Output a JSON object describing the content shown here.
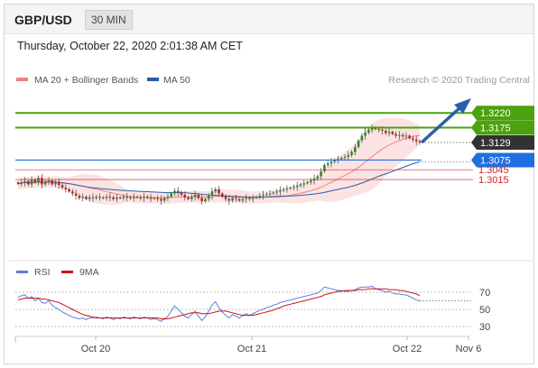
{
  "header": {
    "symbol": "GBP/USD",
    "timeframe": "30 MIN"
  },
  "datetime": "Thursday, October 22, 2020 2:01:38 AM CET",
  "legend": {
    "bollinger": {
      "label": "MA 20 + Bollinger Bands",
      "color": "#f08080"
    },
    "ma50": {
      "label": "MA 50",
      "color": "#2a5fa8"
    }
  },
  "copyright": "Research © 2020 Trading Central",
  "levels": [
    {
      "value": 1.322,
      "label": "1.3220",
      "kind": "resistance",
      "color": "#4ca10f"
    },
    {
      "value": 1.3175,
      "label": "1.3175",
      "kind": "resistance",
      "color": "#4ca10f"
    },
    {
      "value": 1.3129,
      "label": "1.3129",
      "kind": "last-price",
      "color": "#333333"
    },
    {
      "value": 1.3075,
      "label": "1.3075",
      "kind": "pivot",
      "color": "#1f6fe0"
    },
    {
      "value": 1.3045,
      "label": "1.3045",
      "kind": "support",
      "color": "#d02020"
    },
    {
      "value": 1.3015,
      "label": "1.3015",
      "kind": "support",
      "color": "#d02020"
    }
  ],
  "rsi_legend": {
    "rsi": {
      "label": "RSI",
      "color": "#5b7fd8"
    },
    "ma9": {
      "label": "9MA",
      "color": "#cc1111"
    }
  },
  "rsi_levels": [
    "70",
    "50",
    "30"
  ],
  "x_labels": [
    "Oct 20",
    "Oct 21",
    "Oct 22",
    "Nov 6"
  ],
  "chart_data": {
    "type": "candlestick",
    "price_range": [
      1.2895,
      1.325
    ],
    "close": [
      1.3002,
      1.3006,
      1.301,
      1.3,
      1.3015,
      1.3005,
      1.302,
      1.3,
      1.3008,
      1.3012,
      1.3,
      1.3006,
      1.2998,
      1.299,
      1.2985,
      1.2978,
      1.2972,
      1.2965,
      1.2958,
      1.2962,
      1.2955,
      1.296,
      1.2958,
      1.2962,
      1.296,
      1.2958,
      1.2962,
      1.296,
      1.2955,
      1.296,
      1.2958,
      1.2962,
      1.296,
      1.2958,
      1.2962,
      1.296,
      1.2958,
      1.2962,
      1.296,
      1.2956,
      1.2958,
      1.2955,
      1.295,
      1.2958,
      1.2962,
      1.2972,
      1.298,
      1.2975,
      1.2968,
      1.296,
      1.2955,
      1.2962,
      1.2968,
      1.2958,
      1.2948,
      1.2955,
      1.2965,
      1.2978,
      1.2985,
      1.2972,
      1.2962,
      1.2955,
      1.295,
      1.2958,
      1.2955,
      1.295,
      1.2955,
      1.2958,
      1.2955,
      1.2958,
      1.2962,
      1.2965,
      1.2968,
      1.297,
      1.2972,
      1.2975,
      1.2978,
      1.2982,
      1.2985,
      1.2988,
      1.299,
      1.2992,
      1.2996,
      1.3,
      1.3003,
      1.3007,
      1.3012,
      1.3018,
      1.3025,
      1.304,
      1.306,
      1.3065,
      1.307,
      1.3075,
      1.3078,
      1.3082,
      1.3085,
      1.309,
      1.31,
      1.3115,
      1.3135,
      1.315,
      1.316,
      1.3168,
      1.3175,
      1.317,
      1.3168,
      1.3165,
      1.3158,
      1.3162,
      1.3155,
      1.315,
      1.3152,
      1.3148,
      1.315,
      1.3142,
      1.3138,
      1.3133,
      1.3129
    ],
    "rsi": [
      64,
      66,
      67,
      63,
      65,
      60,
      63,
      58,
      57,
      60,
      55,
      52,
      50,
      47,
      45,
      43,
      41,
      40,
      39,
      40,
      38,
      40,
      40,
      41,
      40,
      39,
      41,
      40,
      38,
      40,
      39,
      41,
      40,
      39,
      41,
      40,
      39,
      41,
      40,
      38,
      39,
      38,
      36,
      39,
      42,
      48,
      54,
      50,
      46,
      42,
      40,
      44,
      48,
      42,
      37,
      41,
      48,
      55,
      59,
      52,
      47,
      43,
      40,
      44,
      42,
      40,
      43,
      45,
      43,
      45,
      47,
      49,
      50,
      52,
      53,
      55,
      56,
      58,
      59,
      60,
      61,
      62,
      63,
      64,
      65,
      66,
      67,
      68,
      69,
      72,
      76,
      75,
      74,
      73,
      72,
      72,
      71,
      71,
      72,
      73,
      75,
      76,
      76,
      76,
      77,
      74,
      73,
      72,
      70,
      71,
      69,
      68,
      68,
      67,
      67,
      65,
      63,
      61,
      60
    ],
    "rsi_ma9": [
      61,
      62,
      63,
      63,
      63,
      63,
      63,
      62,
      62,
      61,
      60,
      59,
      58,
      56,
      54,
      52,
      50,
      48,
      46,
      44,
      43,
      42,
      41,
      40,
      40,
      40,
      40,
      40,
      40,
      40,
      40,
      40,
      40,
      40,
      40,
      40,
      40,
      40,
      40,
      40,
      40,
      40,
      39,
      39,
      39,
      40,
      41,
      42,
      43,
      44,
      45,
      46,
      46,
      46,
      45,
      45,
      45,
      46,
      47,
      48,
      48,
      48,
      47,
      46,
      45,
      44,
      43,
      43,
      43,
      43,
      44,
      45,
      46,
      47,
      48,
      49,
      51,
      52,
      54,
      55,
      56,
      57,
      58,
      59,
      60,
      61,
      62,
      63,
      64,
      65,
      67,
      68,
      69,
      70,
      71,
      71,
      72,
      72,
      72,
      72,
      73,
      73,
      73,
      74,
      74,
      74,
      74,
      74,
      74,
      73,
      73,
      73,
      72,
      72,
      71,
      70,
      69,
      68,
      66
    ]
  }
}
